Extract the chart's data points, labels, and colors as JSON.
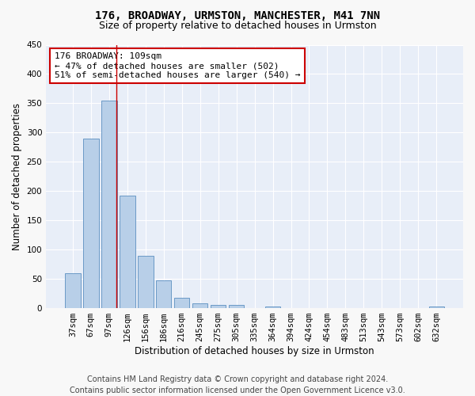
{
  "title_line1": "176, BROADWAY, URMSTON, MANCHESTER, M41 7NN",
  "title_line2": "Size of property relative to detached houses in Urmston",
  "xlabel": "Distribution of detached houses by size in Urmston",
  "ylabel": "Number of detached properties",
  "categories": [
    "37sqm",
    "67sqm",
    "97sqm",
    "126sqm",
    "156sqm",
    "186sqm",
    "216sqm",
    "245sqm",
    "275sqm",
    "305sqm",
    "335sqm",
    "364sqm",
    "394sqm",
    "424sqm",
    "454sqm",
    "483sqm",
    "513sqm",
    "543sqm",
    "573sqm",
    "602sqm",
    "632sqm"
  ],
  "values": [
    60,
    290,
    355,
    192,
    90,
    47,
    18,
    8,
    5,
    5,
    0,
    3,
    0,
    0,
    0,
    0,
    0,
    0,
    0,
    0,
    3
  ],
  "bar_color": "#b8cfe8",
  "bar_edge_color": "#5a8fc0",
  "bar_width": 0.85,
  "ylim": [
    0,
    450
  ],
  "yticks": [
    0,
    50,
    100,
    150,
    200,
    250,
    300,
    350,
    400,
    450
  ],
  "vline_x": 2.41,
  "vline_color": "#cc0000",
  "annotation_text": "176 BROADWAY: 109sqm\n← 47% of detached houses are smaller (502)\n51% of semi-detached houses are larger (540) →",
  "annotation_box_color": "#ffffff",
  "annotation_box_edge": "#cc0000",
  "footer_line1": "Contains HM Land Registry data © Crown copyright and database right 2024.",
  "footer_line2": "Contains public sector information licensed under the Open Government Licence v3.0.",
  "fig_bg_color": "#f8f8f8",
  "plot_bg_color": "#e8eef8",
  "grid_color": "#ffffff",
  "title1_fontsize": 10,
  "title2_fontsize": 9,
  "xlabel_fontsize": 8.5,
  "ylabel_fontsize": 8.5,
  "tick_fontsize": 7.5,
  "footer_fontsize": 7,
  "annotation_fontsize": 8
}
